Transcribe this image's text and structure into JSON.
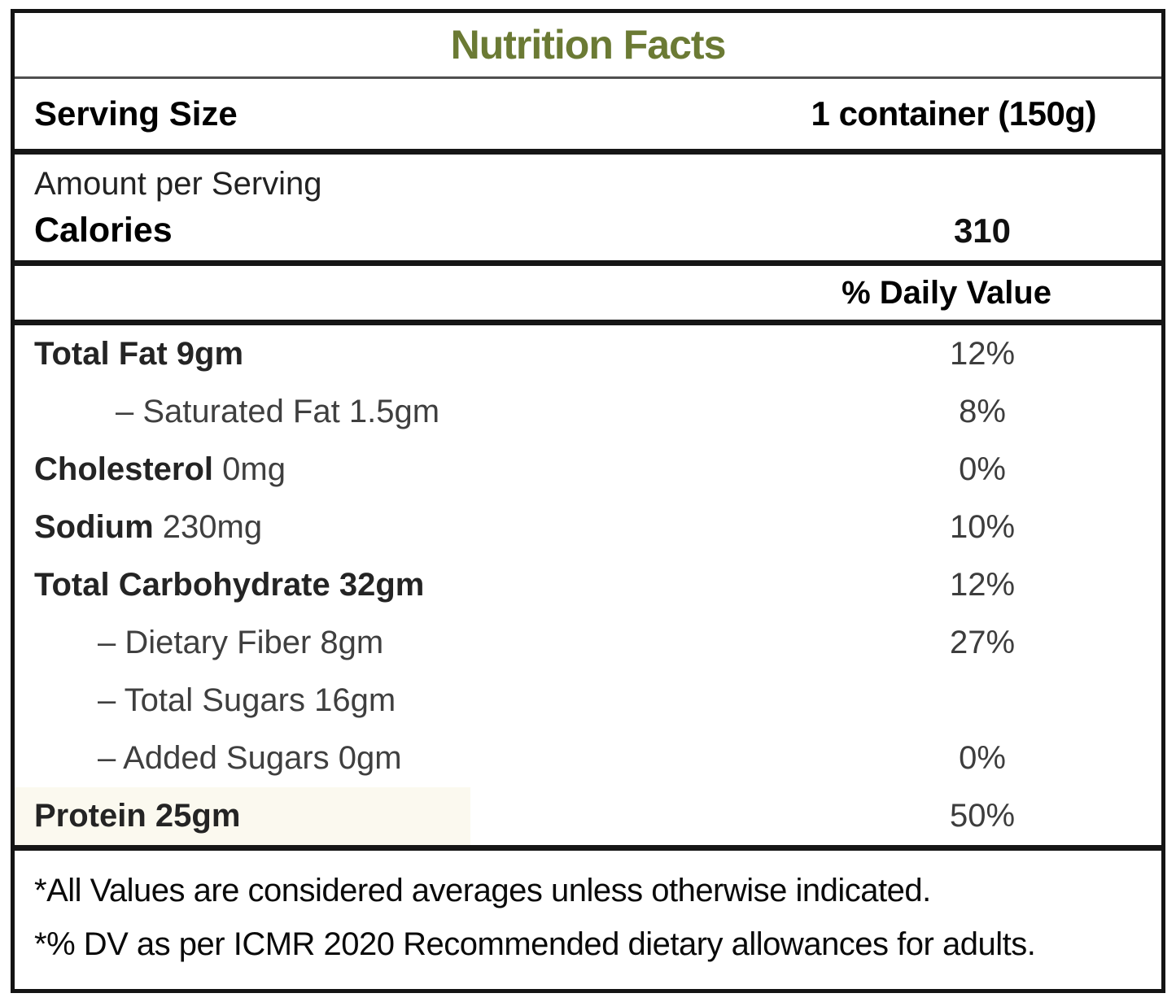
{
  "label": {
    "title": "Nutrition Facts",
    "title_color": "#6B7A34",
    "serving": {
      "label": "Serving Size",
      "value": "1 container (150g)"
    },
    "amount": {
      "heading": "Amount per Serving",
      "calories_label": "Calories",
      "calories_value": "310"
    },
    "dv_header": "% Daily Value",
    "rows": [
      {
        "bold": "Total Fat 9gm",
        "rest": "",
        "dv": "12%"
      },
      {
        "bold": "",
        "rest": "– Saturated Fat 1.5gm",
        "dv": "8%"
      },
      {
        "bold": "Cholesterol",
        "rest": " 0mg",
        "dv": "0%"
      },
      {
        "bold": "Sodium",
        "rest": " 230mg",
        "dv": "10%"
      },
      {
        "bold": "Total Carbohydrate 32gm",
        "rest": "",
        "dv": "12%"
      },
      {
        "bold": "",
        "rest": "– Dietary Fiber 8gm",
        "dv": "27%"
      },
      {
        "bold": "",
        "rest": "– Total Sugars 16gm",
        "dv": ""
      },
      {
        "bold": "",
        "rest": "– Added Sugars 0gm",
        "dv": "0%"
      },
      {
        "bold": "Protein 25gm",
        "rest": "",
        "dv": "50%"
      }
    ],
    "footnotes": [
      "*All Values are considered averages unless otherwise indicated.",
      "*% DV as per ICMR 2020 Recommended dietary allowances for adults."
    ]
  }
}
